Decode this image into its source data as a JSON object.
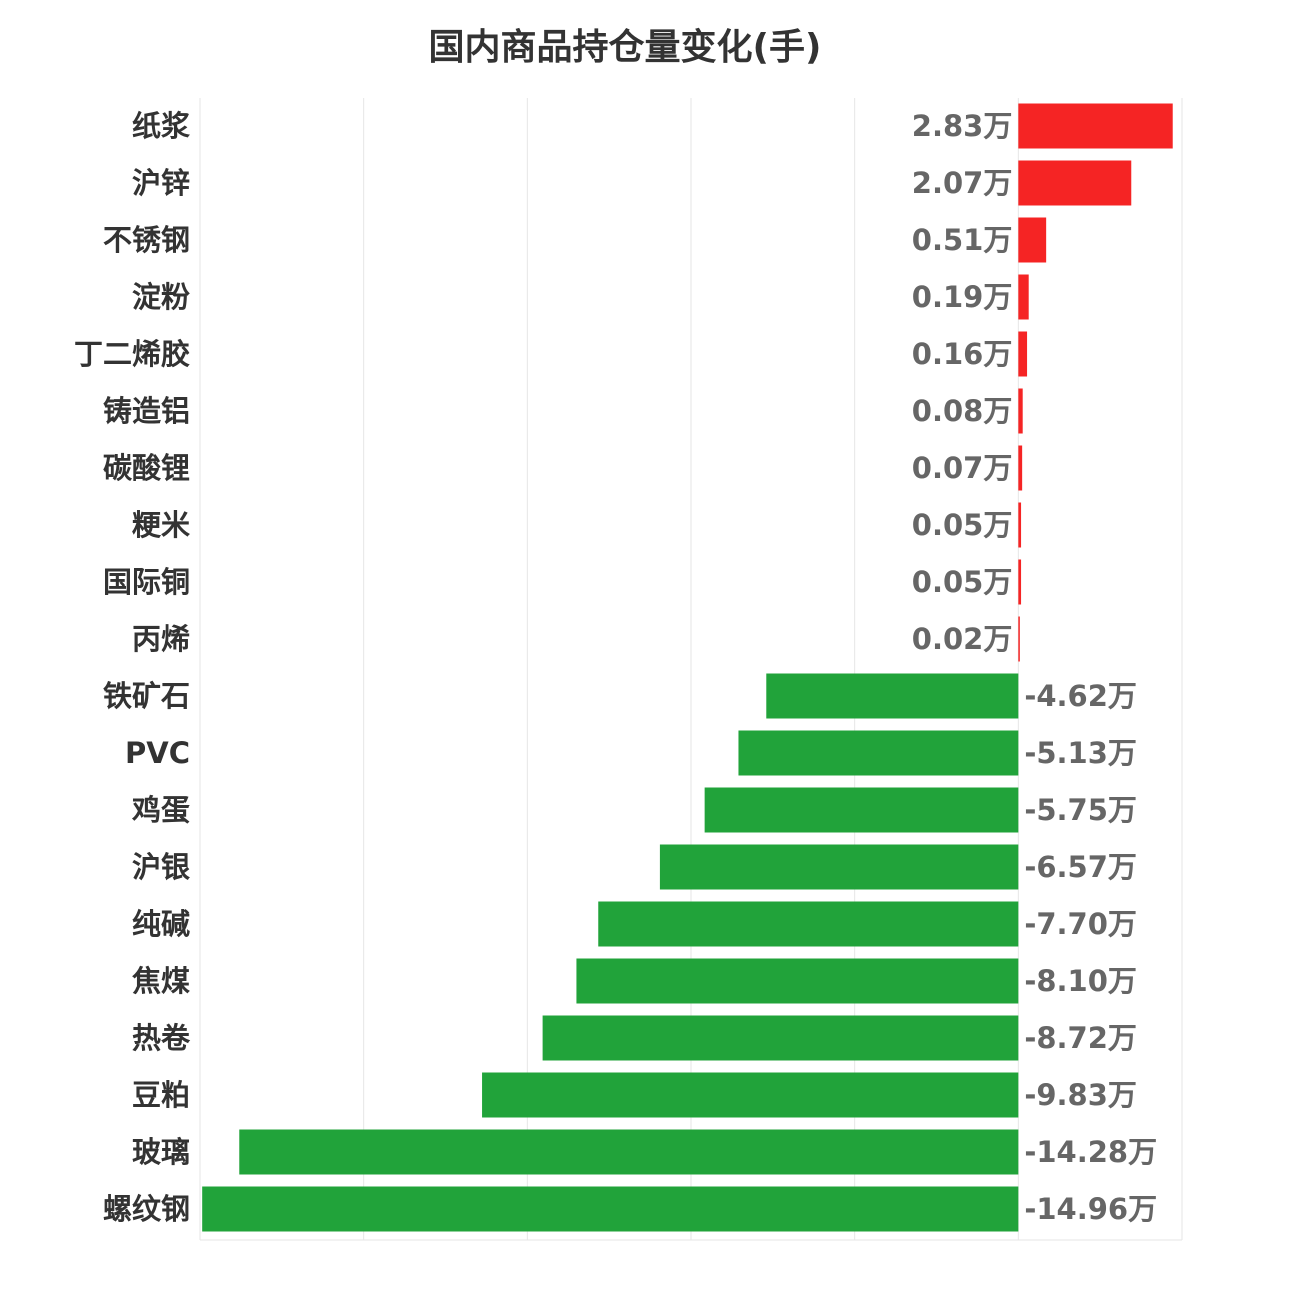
{
  "chart_data": {
    "type": "bar",
    "orientation": "horizontal",
    "title": "国内商品持仓量变化(手)",
    "unit_suffix": "万",
    "categories": [
      "纸浆",
      "沪锌",
      "不锈钢",
      "淀粉",
      "丁二烯胶",
      "铸造铝",
      "碳酸锂",
      "粳米",
      "国际铜",
      "丙烯",
      "铁矿石",
      "PVC",
      "鸡蛋",
      "沪银",
      "纯碱",
      "焦煤",
      "热卷",
      "豆粕",
      "玻璃",
      "螺纹钢"
    ],
    "values": [
      2.83,
      2.07,
      0.51,
      0.19,
      0.16,
      0.08,
      0.07,
      0.05,
      0.05,
      0.02,
      -4.62,
      -5.13,
      -5.75,
      -6.57,
      -7.7,
      -8.1,
      -8.72,
      -9.83,
      -14.28,
      -14.96
    ],
    "labels": [
      "2.83万",
      "2.07万",
      "0.51万",
      "0.19万",
      "0.16万",
      "0.08万",
      "0.07万",
      "0.05万",
      "0.05万",
      "0.02万",
      "-4.62万",
      "-5.13万",
      "-5.75万",
      "-6.57万",
      "-7.70万",
      "-8.10万",
      "-8.72万",
      "-9.83万",
      "-14.28万",
      "-14.96万"
    ],
    "xlim": [
      -15,
      3
    ],
    "grid": true,
    "x_tick_labels_shown": false,
    "colors": {
      "positive": "#f52424",
      "negative": "#21a33a"
    }
  }
}
